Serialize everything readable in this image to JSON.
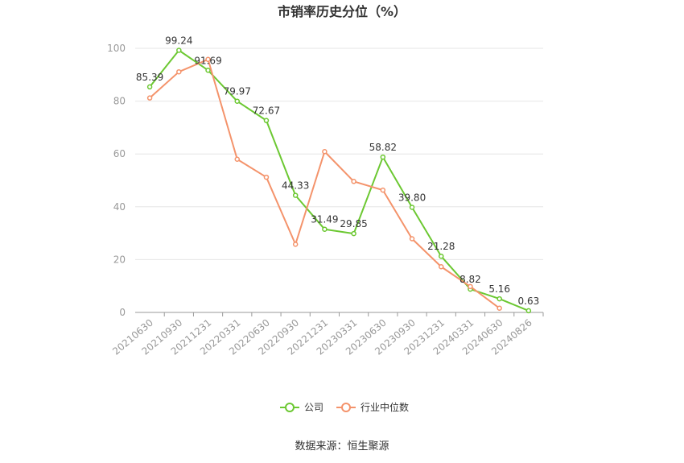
{
  "chart_data": {
    "type": "line",
    "title": "市销率历史分位（%）",
    "categories": [
      "20210630",
      "20210930",
      "20211231",
      "20220331",
      "20220630",
      "20220930",
      "20221231",
      "20230331",
      "20230630",
      "20230930",
      "20231231",
      "20240331",
      "20240630",
      "20240826"
    ],
    "series": [
      {
        "name": "公司",
        "color": "#6cc832",
        "values": [
          85.39,
          99.24,
          91.69,
          79.97,
          72.67,
          44.33,
          31.49,
          29.85,
          58.82,
          39.8,
          21.28,
          8.82,
          5.16,
          0.63
        ],
        "labels": [
          "85.39",
          "99.24",
          "91.69",
          "79.97",
          "72.67",
          "44.33",
          "31.49",
          "29.85",
          "58.82",
          "39.80",
          "21.28",
          "8.82",
          "5.16",
          "0.63"
        ]
      },
      {
        "name": "行业中位数",
        "color": "#f4936b",
        "values": [
          81.2,
          91.1,
          95.8,
          58.0,
          51.2,
          25.8,
          60.9,
          49.6,
          46.3,
          27.9,
          17.3,
          9.8,
          1.6,
          null
        ]
      }
    ],
    "yticks": [
      "0",
      "20",
      "40",
      "60",
      "80",
      "100"
    ],
    "ylim": [
      0,
      100
    ],
    "grid": true,
    "legend": "bottom-center"
  },
  "source": "数据来源：恒生聚源"
}
